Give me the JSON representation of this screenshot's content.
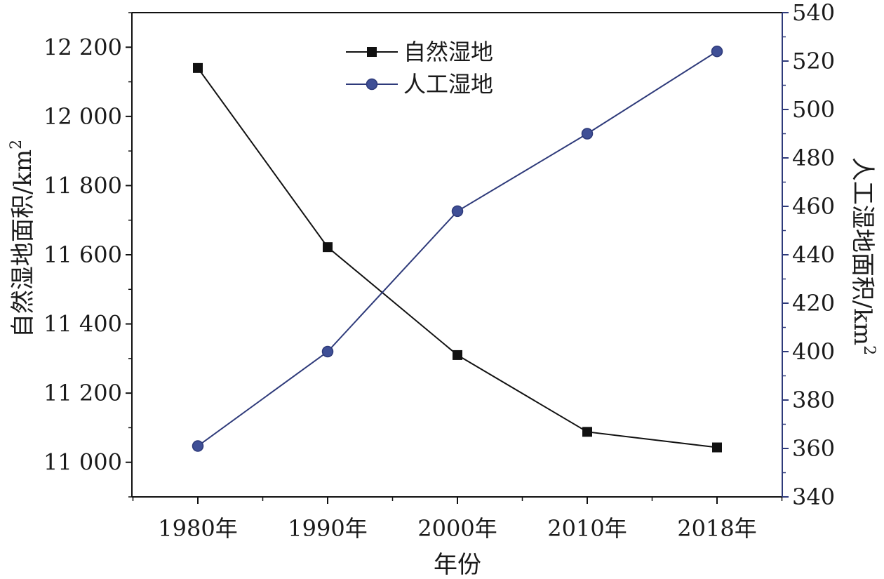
{
  "chart_data": {
    "type": "line",
    "title": "",
    "categories": [
      "1980年",
      "1990年",
      "2000年",
      "2010年",
      "2018年"
    ],
    "xlabel": "年份",
    "ylabel_left": "自然湿地面积/km",
    "ylabel_right": "人工湿地面积/km",
    "ylabel_superscript": "2",
    "y_left": {
      "min": 10900,
      "max": 12300,
      "ticks": [
        11000,
        11200,
        11400,
        11600,
        11800,
        12000,
        12200
      ],
      "tick_labels": [
        "11 000",
        "11 200",
        "11 400",
        "11 600",
        "11 800",
        "12 000",
        "12 200"
      ]
    },
    "y_right": {
      "min": 340,
      "max": 540,
      "ticks": [
        340,
        360,
        380,
        400,
        420,
        440,
        460,
        480,
        500,
        520,
        540
      ],
      "tick_labels": [
        "340",
        "360",
        "380",
        "400",
        "420",
        "440",
        "460",
        "480",
        "500",
        "520",
        "540"
      ]
    },
    "series": [
      {
        "name": "自然湿地",
        "axis": "left",
        "marker": "square",
        "color": "#111111",
        "values": [
          12140,
          11622,
          11310,
          11088,
          11043
        ]
      },
      {
        "name": "人工湿地",
        "axis": "right",
        "marker": "circle",
        "color": "#2e3a7a",
        "values": [
          361,
          400,
          458,
          490,
          524
        ]
      }
    ],
    "legend_position": "top-center",
    "grid": false
  }
}
